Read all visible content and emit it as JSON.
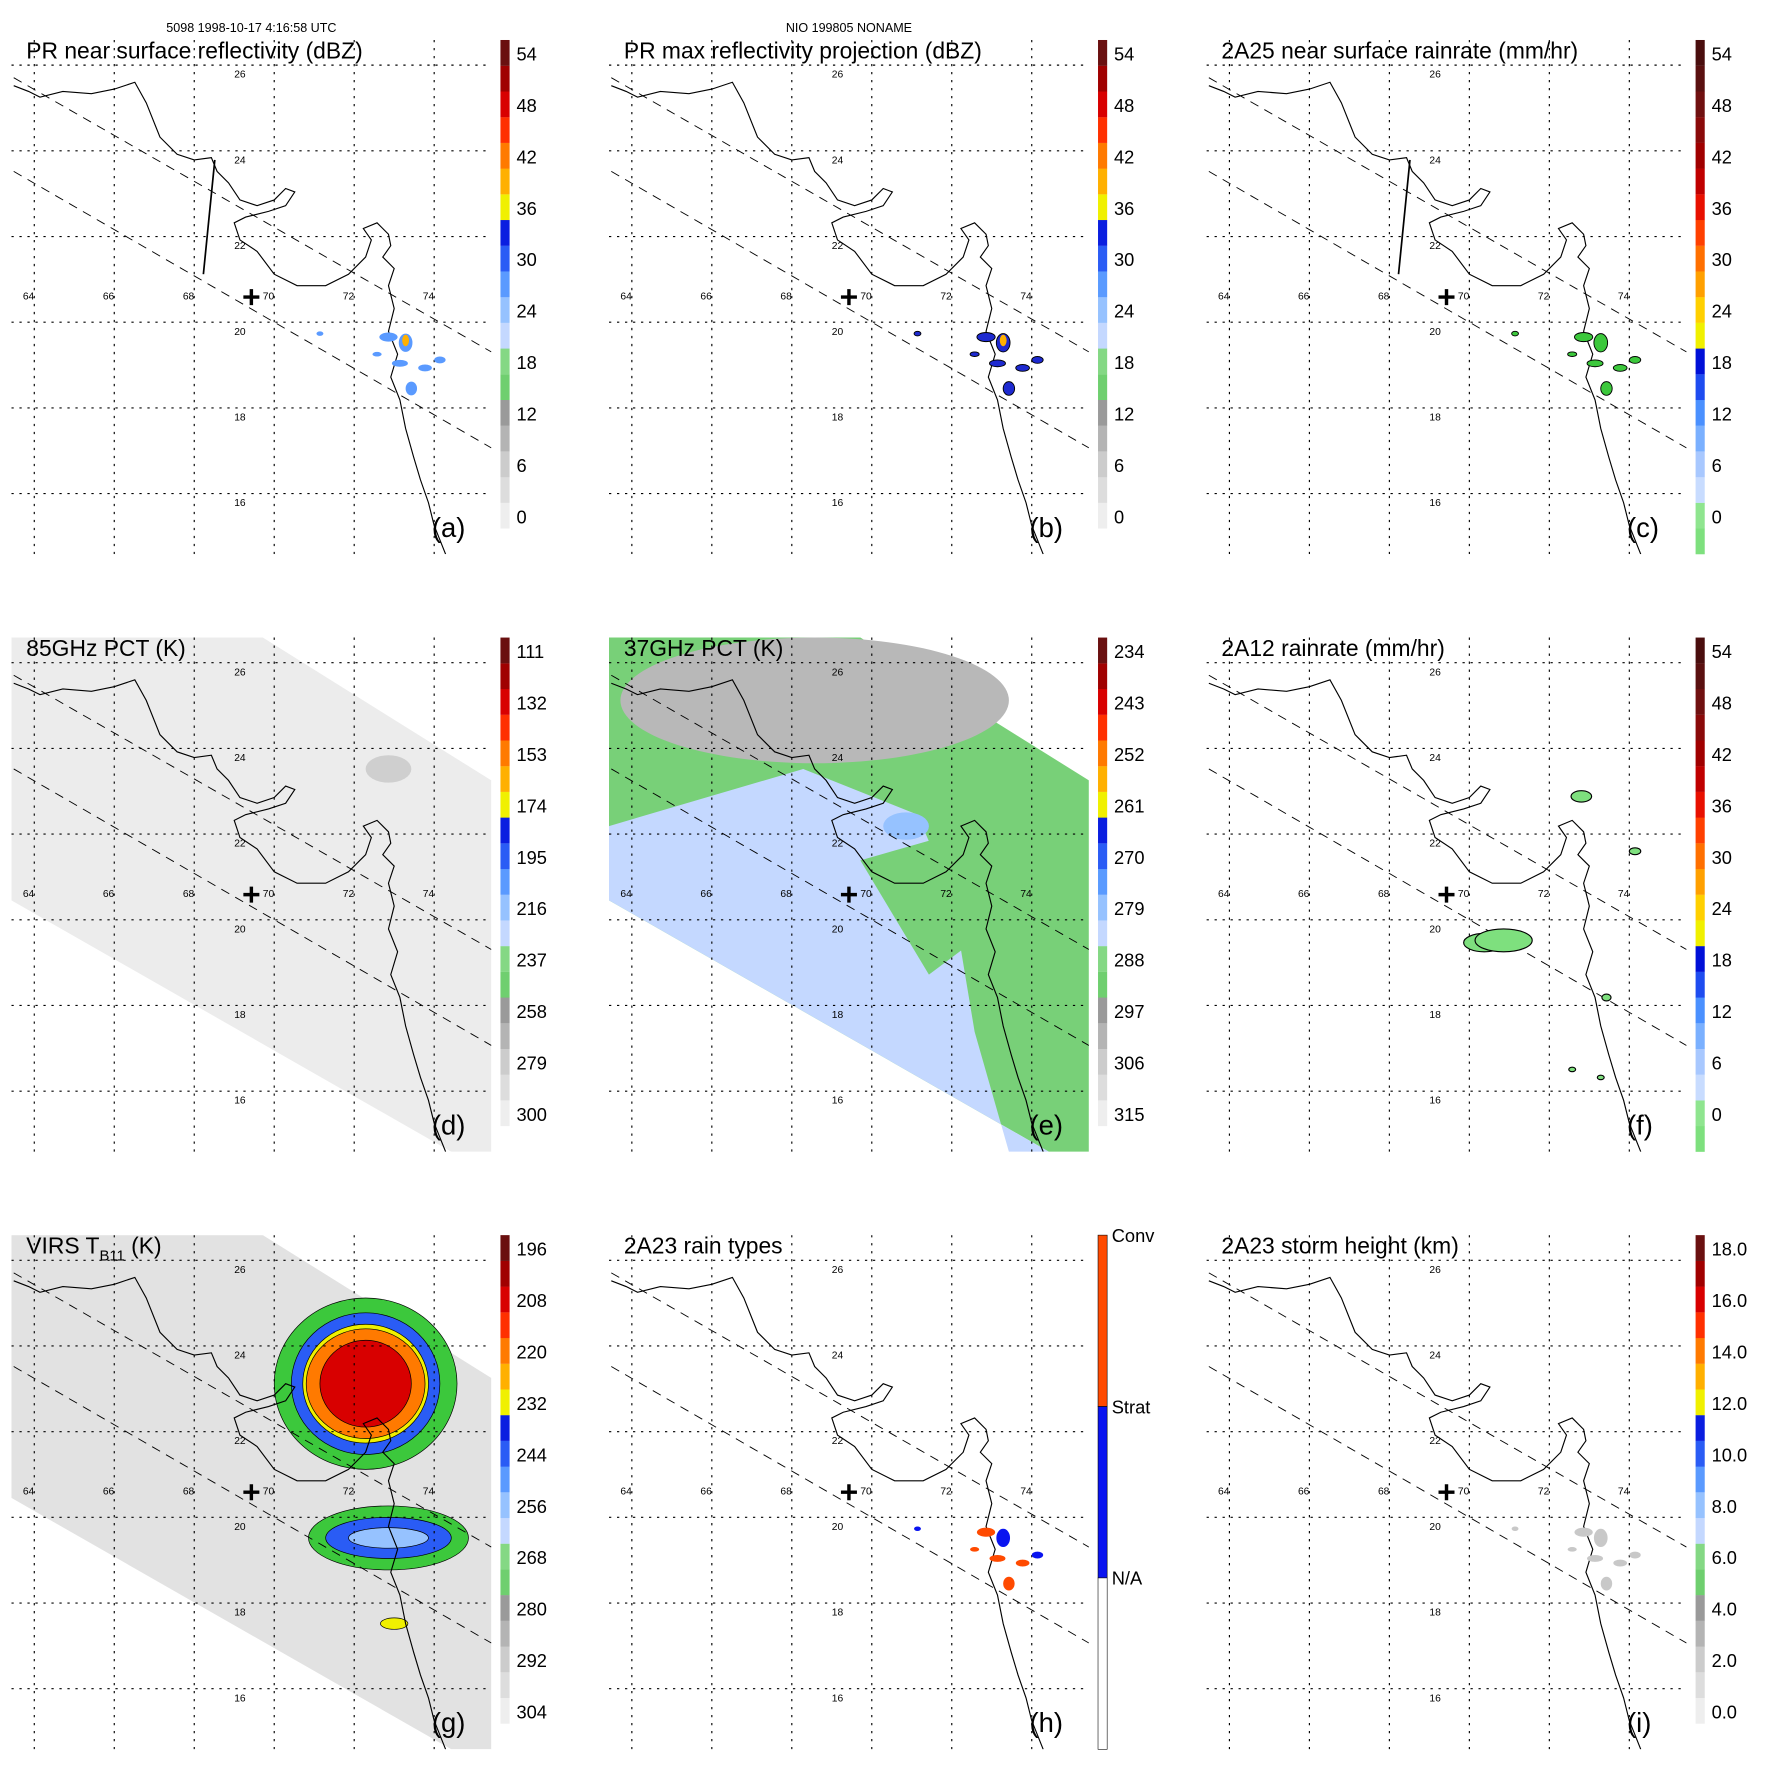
{
  "header": {
    "left": "5098 1998-10-17 4:16:58 UTC",
    "center": "NIO 199805 NONAME"
  },
  "map": {
    "lon_labels": [
      "64",
      "66",
      "68",
      "70",
      "72",
      "74"
    ],
    "lat_labels": [
      "26",
      "24",
      "22",
      "20",
      "18",
      "16"
    ]
  },
  "colors": {
    "std": [
      "#ffffff",
      "#eeeeee",
      "#dddddd",
      "#cccccc",
      "#b4b4b4",
      "#9a9a9a",
      "#6fcf6f",
      "#84d884",
      "#c4d8ff",
      "#96c2ff",
      "#5a9aff",
      "#2a5cf5",
      "#0a1ee0",
      "#f0f000",
      "#ffb000",
      "#ff7a00",
      "#ff3000",
      "#d80000",
      "#a00000",
      "#6a1010"
    ],
    "rain": [
      "#7ee07e",
      "#8fe58f",
      "#c8dcff",
      "#a8c8ff",
      "#7ab0ff",
      "#4a90ff",
      "#1e4cf0",
      "#0010d8",
      "#f0f000",
      "#ffd000",
      "#ffa000",
      "#ff7000",
      "#ff4000",
      "#e81000",
      "#c00000",
      "#a00000",
      "#8a0a0a",
      "#701010",
      "#5a1010",
      "#4a0e0e"
    ],
    "types": [
      "#ffffff",
      "#0a14f0",
      "#ff4a00"
    ]
  },
  "panels": [
    {
      "title": "PR near surface reflectivity (dBZ)",
      "label": "(a)",
      "ticks": [
        "54",
        "48",
        "42",
        "36",
        "30",
        "24",
        "18",
        "12",
        "6",
        "0"
      ]
    },
    {
      "title": "PR max reflectivity projection (dBZ)",
      "label": "(b)",
      "ticks": [
        "54",
        "48",
        "42",
        "36",
        "30",
        "24",
        "18",
        "12",
        "6",
        "0"
      ]
    },
    {
      "title": "2A25 near surface rainrate (mm/hr)",
      "label": "(c)",
      "ticks": [
        "54",
        "48",
        "42",
        "36",
        "30",
        "24",
        "18",
        "12",
        "6",
        "0"
      ]
    },
    {
      "title": "85GHz PCT (K)",
      "label": "(d)",
      "ticks": [
        "111",
        "132",
        "153",
        "174",
        "195",
        "216",
        "237",
        "258",
        "279",
        "300"
      ]
    },
    {
      "title": "37GHz PCT (K)",
      "label": "(e)",
      "ticks": [
        "234",
        "243",
        "252",
        "261",
        "270",
        "279",
        "288",
        "297",
        "306",
        "315"
      ]
    },
    {
      "title": "2A12 rainrate (mm/hr)",
      "label": "(f)",
      "ticks": [
        "54",
        "48",
        "42",
        "36",
        "30",
        "24",
        "18",
        "12",
        "6",
        "0"
      ]
    },
    {
      "title": "VIRS T",
      "title_sub": "B11",
      "title_end": " (K)",
      "label": "(g)",
      "ticks": [
        "196",
        "208",
        "220",
        "232",
        "244",
        "256",
        "268",
        "280",
        "292",
        "304"
      ]
    },
    {
      "title": "2A23 rain types",
      "label": "(h)",
      "ticks": [
        "Conv",
        "Strat",
        "N/A"
      ]
    },
    {
      "title": "2A23 storm height (km)",
      "label": "(i)",
      "ticks": [
        "18.0",
        "16.0",
        "14.0",
        "12.0",
        "10.0",
        "8.0",
        "6.0",
        "4.0",
        "2.0",
        "0.0"
      ]
    }
  ]
}
